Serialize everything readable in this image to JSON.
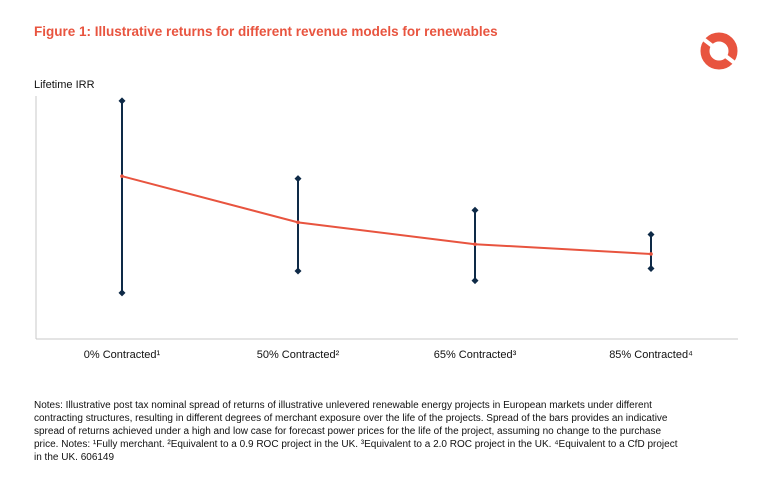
{
  "header": {
    "title": "Figure 1: Illustrative returns for different revenue models for renewables",
    "logo_icon": "ring-logo-icon",
    "accent_color": "#e8543f"
  },
  "chart_data": {
    "type": "line",
    "title": "Figure 1: Illustrative returns for different revenue models for renewables",
    "ylabel": "Lifetime IRR",
    "xlabel": "",
    "categories": [
      "0% Contracted¹",
      "50% Contracted²",
      "65% Contracted³",
      "85% Contracted⁴"
    ],
    "ylim": [
      0,
      100
    ],
    "y_ticks_shown": false,
    "grid": false,
    "series": [
      {
        "color": "#e8543f",
        "values": [
          67,
          48,
          39,
          35
        ]
      }
    ],
    "error_bars": {
      "color": "#0e2a47",
      "high": [
        98,
        66,
        53,
        43
      ],
      "low": [
        19,
        28,
        24,
        29
      ]
    }
  },
  "notes": {
    "text": "Notes: Illustrative post tax nominal spread of returns of illustrative unlevered renewable energy projects in European markets under different contracting structures, resulting in different degrees of merchant exposure over the life of the projects. Spread of the bars provides an indicative spread of returns achieved under a high and low case for forecast power prices for the life of the project, assuming no change to the purchase price. Notes: ¹Fully merchant. ²Equivalent to a 0.9 ROC project in the UK. ³Equivalent to a 2.0 ROC project in the UK. ⁴Equivalent to a CfD project in the UK. 606149"
  }
}
